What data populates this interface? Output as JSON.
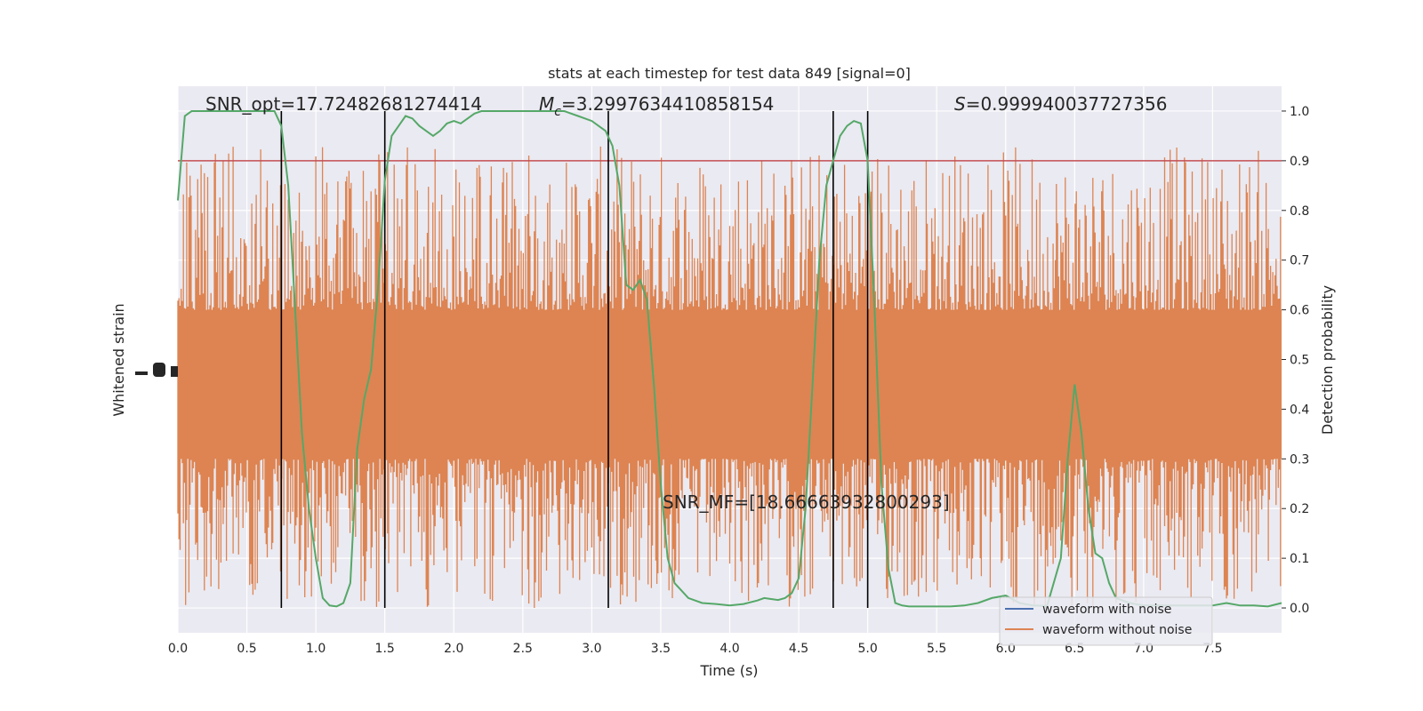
{
  "chart_data": {
    "type": "line",
    "title": "stats at each timestep for test data 849 [signal=0]",
    "xlabel": "Time (s)",
    "ylabel_left": "Whitened strain",
    "ylabel_right": "Detection probability",
    "xlim": [
      0.0,
      8.0
    ],
    "ylim_right": [
      -0.05,
      1.05
    ],
    "x_ticks": [
      "0.0",
      "0.5",
      "1.0",
      "1.5",
      "2.0",
      "2.5",
      "3.0",
      "3.5",
      "4.0",
      "4.5",
      "5.0",
      "5.5",
      "6.0",
      "6.5",
      "7.0",
      "7.5"
    ],
    "y_ticks_right": [
      "0.0",
      "0.1",
      "0.2",
      "0.3",
      "0.4",
      "0.5",
      "0.6",
      "0.7",
      "0.8",
      "0.9",
      "1.0"
    ],
    "grid": true,
    "threshold": 0.9,
    "vertical_lines": [
      0.75,
      1.5,
      3.12,
      4.75,
      5.0
    ],
    "annotations": {
      "snr_opt": "SNR_opt=17.72482681274414",
      "mc_symbol": "M",
      "mc_sub": "c",
      "mc_value": "=3.2997634410858154",
      "s_symbol": "S",
      "s_value": "=0.999940037727356",
      "snr_mf": "SNR_MF=[18.66663932800293]"
    },
    "legend": {
      "placement": "bottom-right",
      "entries": [
        "waveform with noise",
        "waveform without noise"
      ]
    },
    "probability_series": {
      "name": "Detection probability",
      "x": [
        0.0,
        0.05,
        0.1,
        0.2,
        0.3,
        0.4,
        0.5,
        0.6,
        0.7,
        0.75,
        0.8,
        0.85,
        0.9,
        0.95,
        1.0,
        1.05,
        1.1,
        1.15,
        1.2,
        1.25,
        1.3,
        1.35,
        1.4,
        1.45,
        1.5,
        1.55,
        1.6,
        1.65,
        1.7,
        1.75,
        1.8,
        1.85,
        1.9,
        1.95,
        2.0,
        2.05,
        2.1,
        2.15,
        2.2,
        2.3,
        2.4,
        2.5,
        2.6,
        2.7,
        2.8,
        2.9,
        3.0,
        3.05,
        3.1,
        3.15,
        3.2,
        3.25,
        3.3,
        3.35,
        3.4,
        3.45,
        3.5,
        3.55,
        3.6,
        3.7,
        3.8,
        3.9,
        4.0,
        4.1,
        4.2,
        4.25,
        4.3,
        4.35,
        4.4,
        4.45,
        4.5,
        4.55,
        4.6,
        4.65,
        4.7,
        4.75,
        4.8,
        4.85,
        4.9,
        4.95,
        5.0,
        5.05,
        5.1,
        5.15,
        5.2,
        5.25,
        5.3,
        5.4,
        5.5,
        5.6,
        5.7,
        5.8,
        5.9,
        6.0,
        6.1,
        6.2,
        6.3,
        6.4,
        6.45,
        6.5,
        6.55,
        6.6,
        6.65,
        6.7,
        6.75,
        6.8,
        6.9,
        7.0,
        7.1,
        7.2,
        7.3,
        7.4,
        7.5,
        7.6,
        7.7,
        7.8,
        7.9,
        8.0
      ],
      "values": [
        0.82,
        0.99,
        1.0,
        1.0,
        1.0,
        1.0,
        1.0,
        1.0,
        1.0,
        0.97,
        0.85,
        0.6,
        0.35,
        0.2,
        0.1,
        0.02,
        0.005,
        0.003,
        0.01,
        0.05,
        0.32,
        0.42,
        0.48,
        0.64,
        0.86,
        0.95,
        0.97,
        0.99,
        0.985,
        0.97,
        0.96,
        0.95,
        0.96,
        0.975,
        0.98,
        0.975,
        0.985,
        0.995,
        1.0,
        1.0,
        1.0,
        1.0,
        1.0,
        1.0,
        1.0,
        0.99,
        0.98,
        0.97,
        0.96,
        0.93,
        0.85,
        0.65,
        0.64,
        0.66,
        0.62,
        0.45,
        0.25,
        0.1,
        0.05,
        0.02,
        0.01,
        0.008,
        0.005,
        0.008,
        0.015,
        0.02,
        0.018,
        0.016,
        0.02,
        0.03,
        0.06,
        0.2,
        0.45,
        0.7,
        0.85,
        0.9,
        0.95,
        0.97,
        0.98,
        0.975,
        0.9,
        0.6,
        0.25,
        0.08,
        0.01,
        0.005,
        0.003,
        0.003,
        0.003,
        0.003,
        0.005,
        0.01,
        0.02,
        0.025,
        0.01,
        0.005,
        0.004,
        0.1,
        0.3,
        0.45,
        0.35,
        0.2,
        0.11,
        0.1,
        0.05,
        0.02,
        0.01,
        0.005,
        0.005,
        0.005,
        0.005,
        0.005,
        0.005,
        0.01,
        0.005,
        0.005,
        0.003,
        0.01
      ]
    },
    "strain_series": {
      "name": "waveform without noise",
      "band_low": 0.3,
      "band_high": 0.6,
      "spike_low": 0.0,
      "spike_high": 0.93
    },
    "colors": {
      "background": "#eaeaf2",
      "grid": "#ffffff",
      "strain": "#dd8452",
      "probability": "#55a868",
      "threshold": "#c44e52",
      "vline": "#000000",
      "noise_legend": "#4c72b0"
    }
  }
}
